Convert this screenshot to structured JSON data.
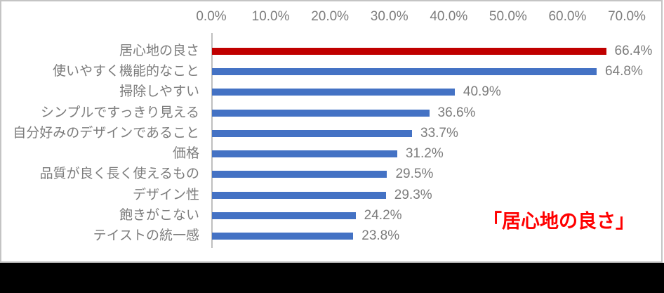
{
  "chart_data": {
    "type": "bar",
    "orientation": "horizontal",
    "title": "",
    "categories": [
      "居心地の良さ",
      "使いやすく機能的なこと",
      "掃除しやすい",
      "シンプルですっきり見える",
      "自分好みのデザインであること",
      "価格",
      "品質が良く長く使えるもの",
      "デザイン性",
      "飽きがこない",
      "テイストの統一感"
    ],
    "values": [
      66.4,
      64.8,
      40.9,
      36.6,
      33.7,
      31.2,
      29.5,
      29.3,
      24.2,
      23.8
    ],
    "value_labels": [
      "66.4%",
      "64.8%",
      "40.9%",
      "36.6%",
      "33.7%",
      "31.2%",
      "29.5%",
      "29.3%",
      "24.2%",
      "23.8%"
    ],
    "highlight_index": 0,
    "x_axis": {
      "position": "top",
      "min": 0,
      "max": 70,
      "tick_step": 10,
      "ticks": [
        "0.0%",
        "10.0%",
        "20.0%",
        "30.0%",
        "40.0%",
        "50.0%",
        "60.0%",
        "70.0%"
      ]
    },
    "grid": false,
    "legend": false,
    "annotation": "「居心地の良さ」",
    "colors": {
      "highlight_bar": "#C00000",
      "bar": "#4472C4",
      "axis_text": "#7C7C7C",
      "category_text": "#7C7C7C",
      "value_text": "#7C7C7C",
      "axis_line": "#BFBFBF",
      "annotation_text": "#FF0000",
      "frame_border": "#C4C4C4",
      "bottom_band": "#000000"
    }
  }
}
